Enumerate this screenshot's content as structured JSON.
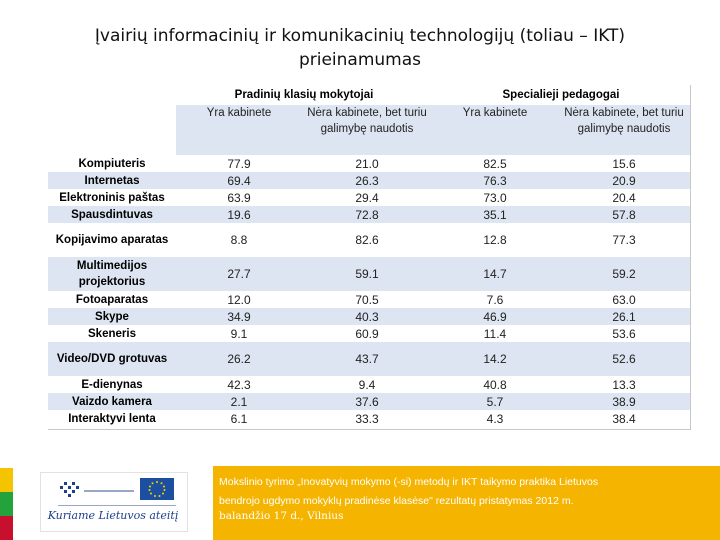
{
  "slide": {
    "title": "Įvairių informacinių ir komunikacinių technologijų (toliau – IKT) prieinamumas"
  },
  "table": {
    "groups": [
      "Pradinių klasių mokytojai",
      "Specialieji pedagogai"
    ],
    "subheaders": [
      "Yra kabinete",
      "Nėra kabinete, bet turiu galimybę naudotis",
      "Yra kabinete",
      "Nėra kabinete, bet turiu galimybę naudotis"
    ],
    "rows": [
      {
        "label": "Kompiuteris",
        "values": [
          "77.9",
          "21.0",
          "82.5",
          "15.6"
        ]
      },
      {
        "label": "Internetas",
        "values": [
          "69.4",
          "26.3",
          "76.3",
          "20.9"
        ]
      },
      {
        "label": "Elektroninis paštas",
        "values": [
          "63.9",
          "29.4",
          "73.0",
          "20.4"
        ]
      },
      {
        "label": "Spausdintuvas",
        "values": [
          "19.6",
          "72.8",
          "35.1",
          "57.8"
        ]
      },
      {
        "label": "Kopijavimo aparatas",
        "values": [
          "8.8",
          "82.6",
          "12.8",
          "77.3"
        ]
      },
      {
        "label": "Multimedijos projektorius",
        "values": [
          "27.7",
          "59.1",
          "14.7",
          "59.2"
        ]
      },
      {
        "label": "Fotoaparatas",
        "values": [
          "12.0",
          "70.5",
          "7.6",
          "63.0"
        ]
      },
      {
        "label": "Skype",
        "values": [
          "34.9",
          "40.3",
          "46.9",
          "26.1"
        ]
      },
      {
        "label": "Skeneris",
        "values": [
          "9.1",
          "60.9",
          "11.4",
          "53.6"
        ]
      },
      {
        "label": "Video/DVD grotuvas",
        "values": [
          "26.2",
          "43.7",
          "14.2",
          "52.6"
        ]
      },
      {
        "label": "E-dienynas",
        "values": [
          "42.3",
          "9.4",
          "40.8",
          "13.3"
        ]
      },
      {
        "label": "Vaizdo kamera",
        "values": [
          "2.1",
          "37.6",
          "5.7",
          "38.9"
        ]
      },
      {
        "label": "Interaktyvi lenta",
        "values": [
          "6.1",
          "33.3",
          "4.3",
          "38.4"
        ]
      }
    ]
  },
  "footer": {
    "logo_text": "Kuriame Lietuvos ateitį",
    "caption_line1": "Mokslinio tyrimo „Inovatyvių mokymo (-si) metodų ir IKT taikymo praktika Lietuvos",
    "caption_line2": "bendrojo ugdymo mokyklų pradinėse klasėse\" rezultatų pristatymas 2012 m.",
    "caption_line3": "balandžio 17 d., Vilnius",
    "colors": {
      "yellow": "#f5c400",
      "green": "#24a33c",
      "red": "#c8102e",
      "caption_bg": "#f5b400",
      "table_band": "#dce5f1"
    }
  }
}
